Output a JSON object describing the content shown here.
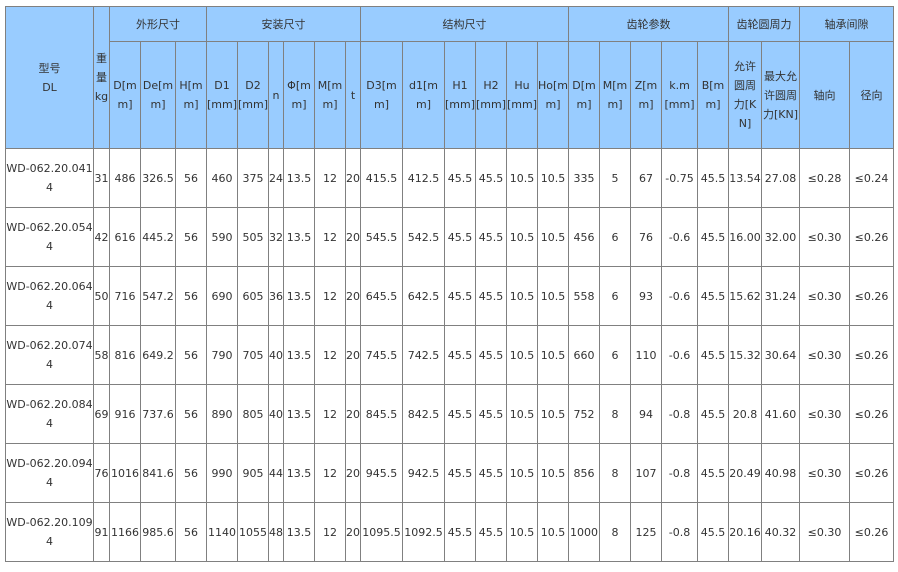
{
  "header": {
    "model": "型号",
    "model_sub": "DL",
    "weight": "重量kg",
    "groups": [
      "外形尺寸",
      "安装尺寸",
      "结构尺寸",
      "齿轮参数",
      "齿轮圆周力",
      "轴承间隙"
    ],
    "cols": [
      "D[mm]",
      "De[mm]",
      "H[mm]",
      "D1[mm]",
      "D2[mm]",
      "n",
      "Φ[mm]",
      "M[mm]",
      "t",
      "D3[mm]",
      "d1[mm]",
      "H1[mm]",
      "H2[mm]",
      "Hu[mm]",
      "Ho[mm]",
      "D[mm]",
      "M[mm]",
      "Z[mm]",
      "k.m[mm]",
      "B[mm]",
      "允许圆周力[KN]",
      "最大允许圆周力[KN]",
      "轴向",
      "径向"
    ]
  },
  "rows": [
    [
      "WD-062.20.0414",
      "31",
      "486",
      "326.5",
      "56",
      "460",
      "375",
      "24",
      "13.5",
      "12",
      "20",
      "415.5",
      "412.5",
      "45.5",
      "45.5",
      "10.5",
      "10.5",
      "335",
      "5",
      "67",
      "-0.75",
      "45.5",
      "13.54",
      "27.08",
      "≤0.28",
      "≤0.24"
    ],
    [
      "WD-062.20.0544",
      "42",
      "616",
      "445.2",
      "56",
      "590",
      "505",
      "32",
      "13.5",
      "12",
      "20",
      "545.5",
      "542.5",
      "45.5",
      "45.5",
      "10.5",
      "10.5",
      "456",
      "6",
      "76",
      "-0.6",
      "45.5",
      "16.00",
      "32.00",
      "≤0.30",
      "≤0.26"
    ],
    [
      "WD-062.20.0644",
      "50",
      "716",
      "547.2",
      "56",
      "690",
      "605",
      "36",
      "13.5",
      "12",
      "20",
      "645.5",
      "642.5",
      "45.5",
      "45.5",
      "10.5",
      "10.5",
      "558",
      "6",
      "93",
      "-0.6",
      "45.5",
      "15.62",
      "31.24",
      "≤0.30",
      "≤0.26"
    ],
    [
      "WD-062.20.0744",
      "58",
      "816",
      "649.2",
      "56",
      "790",
      "705",
      "40",
      "13.5",
      "12",
      "20",
      "745.5",
      "742.5",
      "45.5",
      "45.5",
      "10.5",
      "10.5",
      "660",
      "6",
      "110",
      "-0.6",
      "45.5",
      "15.32",
      "30.64",
      "≤0.30",
      "≤0.26"
    ],
    [
      "WD-062.20.0844",
      "69",
      "916",
      "737.6",
      "56",
      "890",
      "805",
      "40",
      "13.5",
      "12",
      "20",
      "845.5",
      "842.5",
      "45.5",
      "45.5",
      "10.5",
      "10.5",
      "752",
      "8",
      "94",
      "-0.8",
      "45.5",
      "20.8",
      "41.60",
      "≤0.30",
      "≤0.26"
    ],
    [
      "WD-062.20.0944",
      "76",
      "1016",
      "841.6",
      "56",
      "990",
      "905",
      "44",
      "13.5",
      "12",
      "20",
      "945.5",
      "942.5",
      "45.5",
      "45.5",
      "10.5",
      "10.5",
      "856",
      "8",
      "107",
      "-0.8",
      "45.5",
      "20.49",
      "40.98",
      "≤0.30",
      "≤0.26"
    ],
    [
      "WD-062.20.1094",
      "91",
      "1166",
      "985.6",
      "56",
      "1140",
      "1055",
      "48",
      "13.5",
      "12",
      "20",
      "1095.5",
      "1092.5",
      "45.5",
      "45.5",
      "10.5",
      "10.5",
      "1000",
      "8",
      "125",
      "-0.8",
      "45.5",
      "20.16",
      "40.32",
      "≤0.30",
      "≤0.26"
    ]
  ]
}
